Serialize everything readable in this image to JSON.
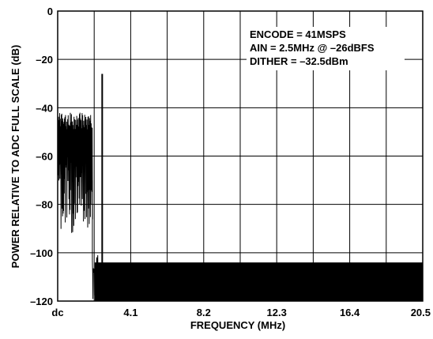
{
  "chart_data": {
    "type": "line",
    "xlabel": "FREQUENCY (MHz)",
    "ylabel": "POWER RELATIVE TO ADC FULL SCALE (dB)",
    "xlim": [
      0,
      20.5
    ],
    "ylim": [
      -120,
      0
    ],
    "x_ticks": [
      {
        "value": 0,
        "label": "dc"
      },
      {
        "value": 4.1,
        "label": "4.1"
      },
      {
        "value": 8.2,
        "label": "8.2"
      },
      {
        "value": 12.3,
        "label": "12.3"
      },
      {
        "value": 16.4,
        "label": "16.4"
      },
      {
        "value": 20.5,
        "label": "20.5"
      }
    ],
    "y_ticks": [
      {
        "value": 0,
        "label": "0"
      },
      {
        "value": -20,
        "label": "–20"
      },
      {
        "value": -40,
        "label": "–40"
      },
      {
        "value": -60,
        "label": "–60"
      },
      {
        "value": -80,
        "label": "–80"
      },
      {
        "value": -100,
        "label": "–100"
      },
      {
        "value": -120,
        "label": "–120"
      }
    ],
    "grid": true,
    "annotations": [
      "ENCODE = 41MSPS",
      "AIN = 2.5MHz @ –26dBFS",
      "DITHER = –32.5dBm"
    ],
    "signal": {
      "x": 2.5,
      "y": -26
    },
    "dither_band": {
      "x_start": 0,
      "x_end": 1.95,
      "peak_min": -49,
      "peak_max": -42,
      "trough_min": -92,
      "trough_max": -60
    },
    "noise_floor": {
      "top": -104,
      "bottom": -120,
      "dense_level": -110
    },
    "color": "#000000"
  }
}
